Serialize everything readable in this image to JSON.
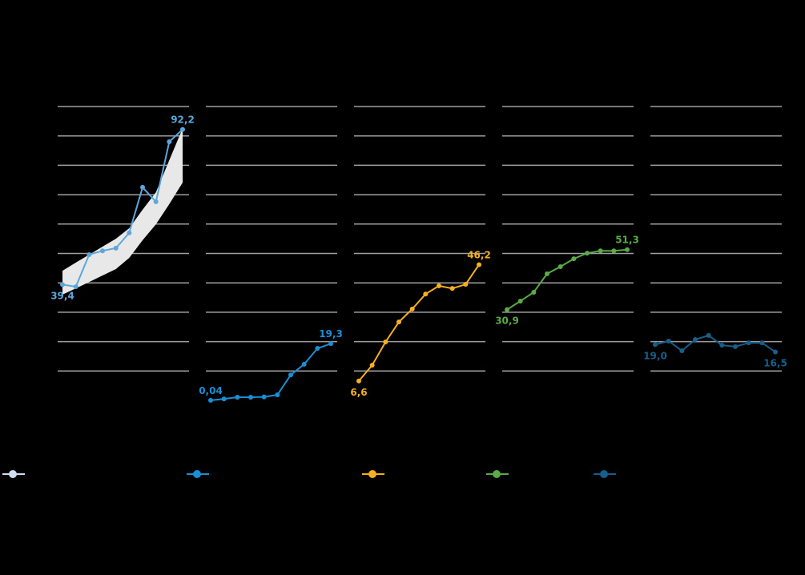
{
  "chart_data": {
    "type": "line",
    "ylim": [
      0,
      100
    ],
    "yticks": [
      10,
      20,
      30,
      40,
      50,
      60,
      70,
      80,
      90,
      100
    ],
    "grid": true,
    "series": [
      {
        "color": "#5ba7dc",
        "values": [
          39.4,
          38.7,
          49.6,
          50.9,
          51.8,
          57.0,
          72.5,
          67.6,
          88.0,
          92.2
        ],
        "value_labels": [
          "39,4",
          null,
          null,
          null,
          null,
          null,
          null,
          null,
          null,
          "92,2"
        ],
        "band": {
          "color": "#e8e8e8",
          "low": [
            36.0,
            38.1,
            40.3,
            42.5,
            44.7,
            48.5,
            54.5,
            59.9,
            66.8,
            74.1
          ],
          "high": [
            44.1,
            46.9,
            49.6,
            52.3,
            55.0,
            58.6,
            64.9,
            70.8,
            81.7,
            92.6
          ]
        }
      },
      {
        "color": "#1a8fd3",
        "values": [
          0.04,
          0.5,
          1.1,
          1.1,
          1.2,
          1.9,
          8.7,
          12.3,
          17.7,
          19.3
        ],
        "value_labels": [
          "0,04",
          null,
          null,
          null,
          null,
          null,
          null,
          null,
          null,
          "19,3"
        ]
      },
      {
        "color": "#f5b021",
        "values": [
          6.6,
          12.0,
          19.9,
          26.7,
          31.1,
          36.2,
          39.0,
          38.1,
          39.5,
          46.2
        ],
        "value_labels": [
          "6,6",
          null,
          null,
          null,
          null,
          null,
          null,
          null,
          null,
          "46,2"
        ]
      },
      {
        "color": "#5aab46",
        "values": [
          30.9,
          33.8,
          36.8,
          43.1,
          45.5,
          48.2,
          50.1,
          50.9,
          50.9,
          51.3
        ],
        "value_labels": [
          "30,9",
          null,
          null,
          null,
          null,
          null,
          null,
          null,
          null,
          "51,3"
        ]
      },
      {
        "color": "#175f8a",
        "values": [
          19.0,
          20.2,
          16.9,
          20.7,
          22.1,
          18.8,
          18.3,
          19.6,
          19.6,
          16.5
        ],
        "value_labels": [
          "19,0",
          null,
          null,
          null,
          null,
          null,
          null,
          null,
          null,
          "16,5"
        ]
      }
    ],
    "legend_colors": [
      "#cde0f0",
      "#1a8fd3",
      "#f5b021",
      "#5aab46",
      "#175f8a"
    ]
  }
}
